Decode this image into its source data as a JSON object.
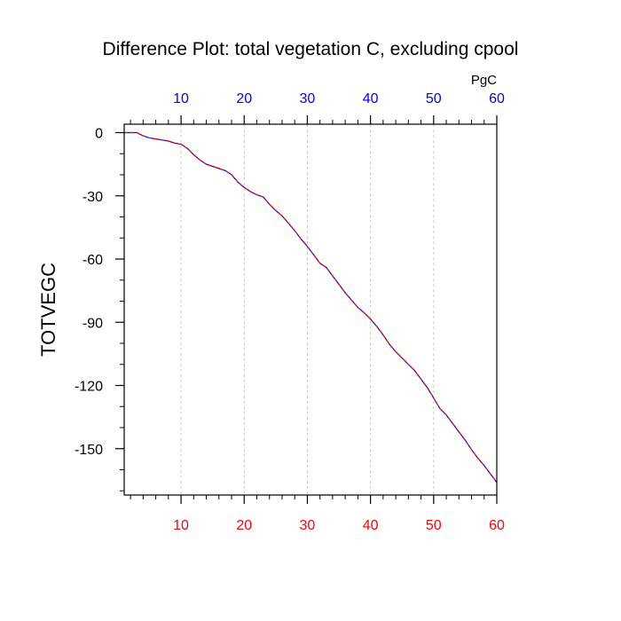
{
  "chart_data": {
    "type": "line",
    "title": "Difference Plot: total vegetation C, excluding cpool",
    "units_label": "PgC",
    "ylabel": "TOTVEGC",
    "xlabel": "",
    "xlim": [
      1,
      60
    ],
    "ylim": [
      -172,
      4
    ],
    "x_ticks": [
      10,
      20,
      30,
      40,
      50,
      60
    ],
    "x_tick_labels": [
      "10",
      "20",
      "30",
      "40",
      "50",
      "60"
    ],
    "y_ticks": [
      0,
      -30,
      -60,
      -90,
      -120,
      -150
    ],
    "y_tick_labels": [
      "0",
      "-30",
      "-60",
      "-90",
      "-120",
      "-150"
    ],
    "grid": "vertical-dashed",
    "bottom_tick_color": "#ff0000",
    "top_tick_color": "#0000ff",
    "line_colors": [
      "#0000ff",
      "#ff0000"
    ],
    "series": [
      {
        "x": [
          1,
          2,
          3,
          4,
          5,
          6,
          7,
          8,
          9,
          10,
          11,
          12,
          13,
          14,
          15,
          16,
          17,
          18,
          19,
          20,
          21,
          22,
          23,
          24,
          25,
          26,
          27,
          28,
          29,
          30,
          31,
          32,
          33,
          34,
          35,
          36,
          37,
          38,
          39,
          40,
          41,
          42,
          43,
          44,
          45,
          46,
          47,
          48,
          49,
          50,
          51,
          52,
          53,
          54,
          55,
          56,
          57,
          58,
          59,
          60
        ],
        "y": [
          0,
          0,
          0,
          -1.5,
          -2.5,
          -3,
          -3.5,
          -4,
          -5,
          -5.5,
          -7.5,
          -10.5,
          -13,
          -15,
          -16,
          -17,
          -18,
          -20,
          -23.5,
          -26,
          -28,
          -29.5,
          -30.5,
          -34,
          -37,
          -39.5,
          -43,
          -46.5,
          -50.5,
          -54,
          -58,
          -62,
          -64,
          -68,
          -72,
          -76,
          -79.5,
          -83,
          -85.5,
          -88.5,
          -92,
          -96,
          -100.5,
          -104,
          -107,
          -110,
          -113,
          -117,
          -121,
          -126,
          -131,
          -134,
          -138,
          -142,
          -146,
          -150.5,
          -154.5,
          -158,
          -162,
          -166
        ]
      }
    ]
  }
}
